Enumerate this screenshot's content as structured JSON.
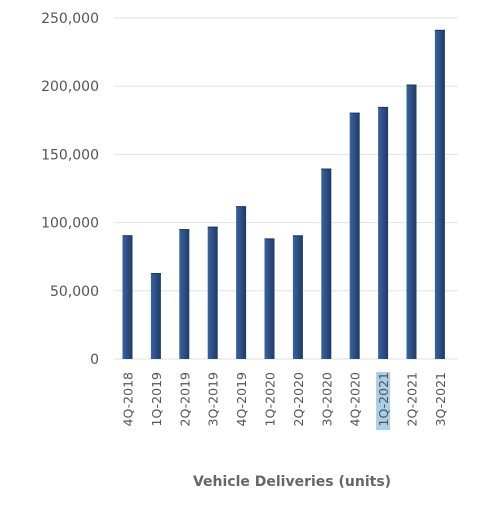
{
  "chart_data": {
    "type": "bar",
    "title": "",
    "xlabel": "Vehicle Deliveries (units)",
    "ylabel": "",
    "ylim": [
      0,
      250000
    ],
    "yticks": [
      0,
      50000,
      100000,
      150000,
      200000,
      250000
    ],
    "ytick_labels": [
      "0",
      "50,000",
      "100,000",
      "150,000",
      "200,000",
      "250,000"
    ],
    "grid": true,
    "legend": "none",
    "categories": [
      "4Q-2018",
      "1Q-2019",
      "2Q-2019",
      "3Q-2019",
      "4Q-2019",
      "1Q-2020",
      "2Q-2020",
      "3Q-2020",
      "4Q-2020",
      "1Q-2021",
      "2Q-2021",
      "3Q-2021"
    ],
    "values": [
      90700,
      63000,
      95200,
      97000,
      112000,
      88400,
      90650,
      139600,
      180570,
      184800,
      201250,
      241300
    ],
    "highlighted_categories": [
      "1Q-2021"
    ],
    "colors": {
      "bar_left": "#3a63a0",
      "bar_right": "#1e3a66",
      "grid": "#e2e2e2",
      "text": "#555555",
      "highlight": "#a8cfe6"
    }
  }
}
